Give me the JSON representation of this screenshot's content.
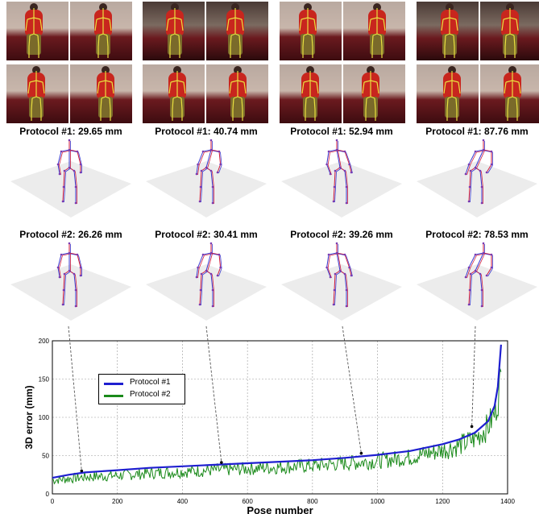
{
  "panels": [
    {
      "protocol1": "Protocol #1: 29.65 mm",
      "protocol2": "Protocol #2: 26.26 mm"
    },
    {
      "protocol1": "Protocol #1: 40.74 mm",
      "protocol2": "Protocol #2: 30.41 mm"
    },
    {
      "protocol1": "Protocol #1: 52.94 mm",
      "protocol2": "Protocol #2: 39.26 mm"
    },
    {
      "protocol1": "Protocol #1: 87.76 mm",
      "protocol2": "Protocol #2: 78.53 mm"
    }
  ],
  "colors": {
    "protocol1": "#1f1fd0",
    "protocol2": "#1a8a1a",
    "skeleton_red": "#d01a3a",
    "skeleton_blue": "#3a3ad0",
    "joint": "#7a3ab0"
  },
  "chart_data": {
    "type": "line",
    "xlabel": "Pose number",
    "ylabel": "3D error (mm)",
    "xlim": [
      0,
      1400
    ],
    "ylim": [
      0,
      200
    ],
    "xticks": [
      0,
      200,
      400,
      600,
      800,
      1000,
      1200,
      1400
    ],
    "yticks": [
      0,
      50,
      100,
      150,
      200
    ],
    "grid": true,
    "legend_position": "upper-left",
    "series": [
      {
        "name": "Protocol #1",
        "x": [
          0,
          50,
          100,
          200,
          300,
          400,
          500,
          600,
          700,
          800,
          900,
          1000,
          1100,
          1200,
          1250,
          1300,
          1340,
          1360,
          1370,
          1380
        ],
        "y": [
          21,
          25,
          28,
          31,
          34,
          36,
          38,
          40,
          42,
          44,
          47,
          51,
          56,
          65,
          71,
          80,
          95,
          115,
          140,
          195
        ]
      },
      {
        "name": "Protocol #2",
        "x": [
          0,
          50,
          100,
          200,
          300,
          400,
          500,
          600,
          700,
          800,
          900,
          1000,
          1100,
          1200,
          1250,
          1300,
          1340,
          1360,
          1370,
          1380
        ],
        "y": [
          18,
          20,
          22,
          24,
          27,
          29,
          31,
          33,
          35,
          37,
          40,
          43,
          48,
          57,
          63,
          72,
          88,
          105,
          125,
          150
        ]
      }
    ],
    "markers": [
      {
        "x": 90,
        "y": 30
      },
      {
        "x": 520,
        "y": 41
      },
      {
        "x": 950,
        "y": 53
      },
      {
        "x": 1290,
        "y": 88
      }
    ]
  }
}
